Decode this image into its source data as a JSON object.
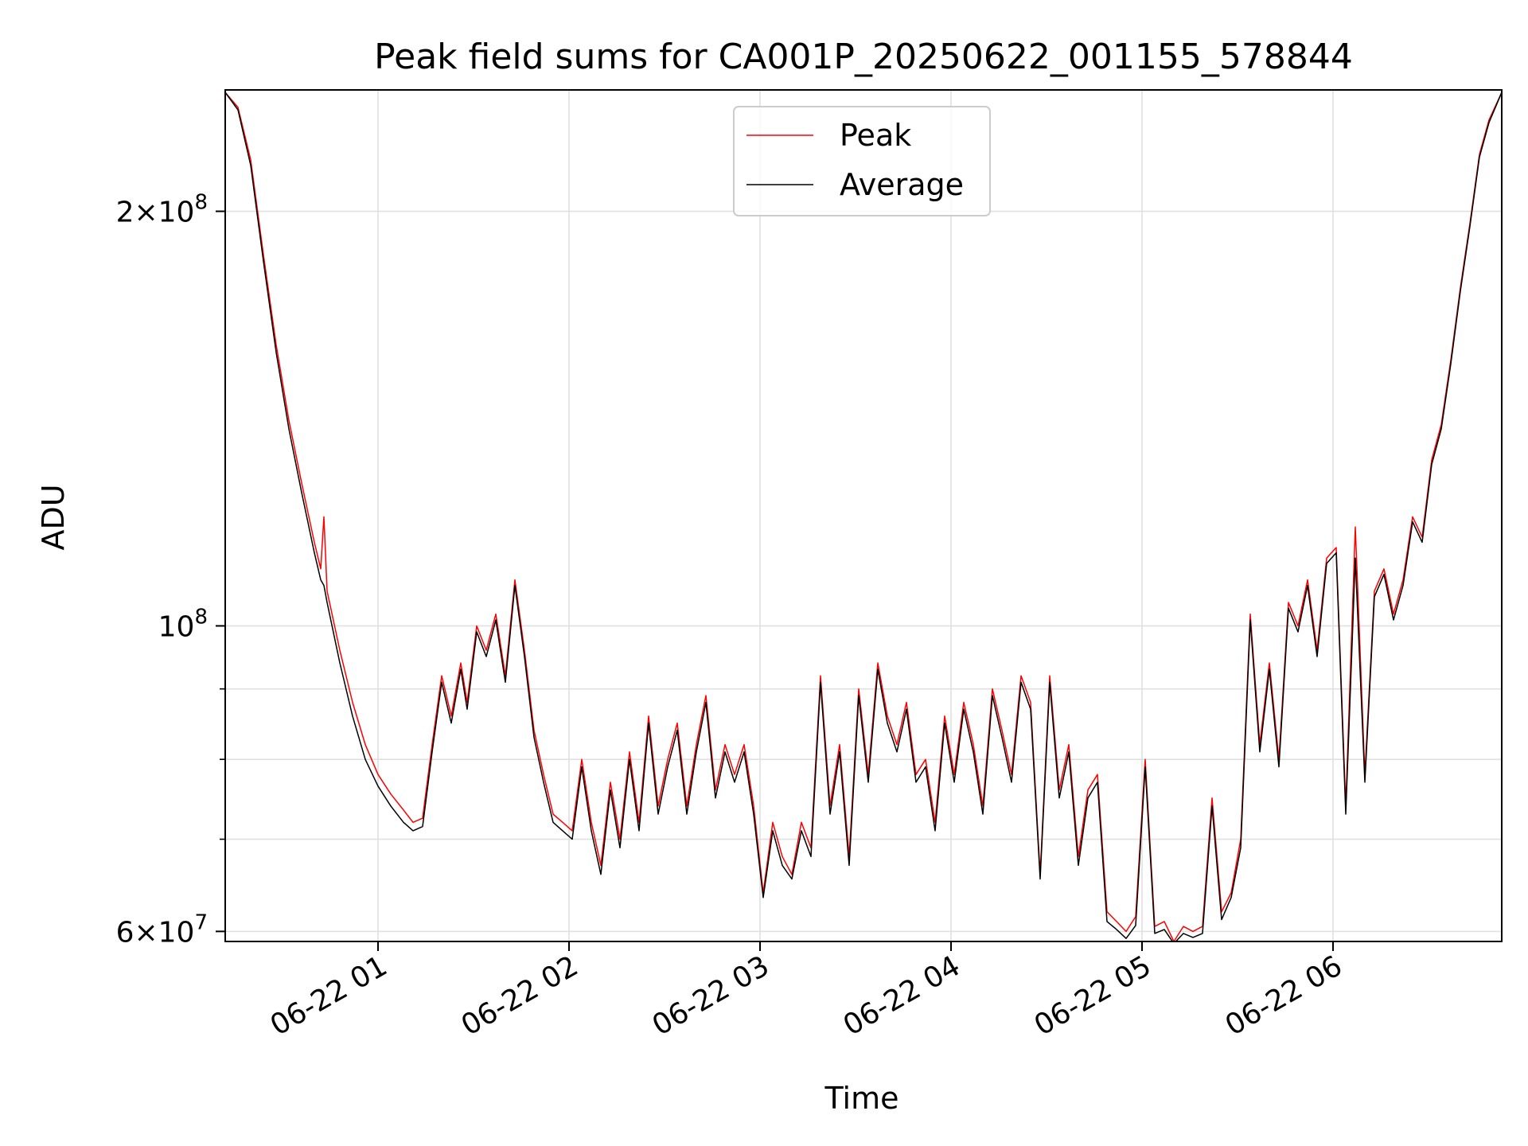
{
  "chart_data": {
    "type": "line",
    "title": "Peak field sums for CA001P_20250622_001155_578844",
    "xlabel": "Time",
    "ylabel": "ADU",
    "yscale": "log",
    "ylim": [
      59000000,
      245000000
    ],
    "xlim": [
      "2025-06-22 00:12",
      "2025-06-22 06:53"
    ],
    "grid": true,
    "legend_placement": "upper center",
    "x_ticks": [
      {
        "value": "2025-06-22 01:00",
        "label": "06-22 01"
      },
      {
        "value": "2025-06-22 02:00",
        "label": "06-22 02"
      },
      {
        "value": "2025-06-22 03:00",
        "label": "06-22 03"
      },
      {
        "value": "2025-06-22 04:00",
        "label": "06-22 04"
      },
      {
        "value": "2025-06-22 05:00",
        "label": "06-22 05"
      },
      {
        "value": "2025-06-22 06:00",
        "label": "06-22 06"
      }
    ],
    "y_ticks_major": [
      {
        "value": 200000000,
        "mantissa": "2",
        "times": "×",
        "base": "10",
        "exp": "8"
      },
      {
        "value": 100000000,
        "mantissa": "",
        "times": "",
        "base": "10",
        "exp": "8"
      },
      {
        "value": 60000000,
        "mantissa": "6",
        "times": "×",
        "base": "10",
        "exp": "7"
      }
    ],
    "y_ticks_minor": [
      70000000,
      80000000,
      90000000
    ],
    "series": [
      {
        "name": "Peak",
        "color": "#ff0000",
        "x": [
          "2025-06-22 00:12",
          "2025-06-22 00:16",
          "2025-06-22 00:20",
          "2025-06-22 00:24",
          "2025-06-22 00:28",
          "2025-06-22 00:32",
          "2025-06-22 00:36",
          "2025-06-22 00:40",
          "2025-06-22 00:42",
          "2025-06-22 00:43",
          "2025-06-22 00:44",
          "2025-06-22 00:48",
          "2025-06-22 00:52",
          "2025-06-22 00:56",
          "2025-06-22 01:00",
          "2025-06-22 01:04",
          "2025-06-22 01:08",
          "2025-06-22 01:11",
          "2025-06-22 01:14",
          "2025-06-22 01:17",
          "2025-06-22 01:20",
          "2025-06-22 01:23",
          "2025-06-22 01:26",
          "2025-06-22 01:28",
          "2025-06-22 01:31",
          "2025-06-22 01:34",
          "2025-06-22 01:37",
          "2025-06-22 01:40",
          "2025-06-22 01:43",
          "2025-06-22 01:46",
          "2025-06-22 01:49",
          "2025-06-22 01:52",
          "2025-06-22 01:55",
          "2025-06-22 01:58",
          "2025-06-22 02:01",
          "2025-06-22 02:04",
          "2025-06-22 02:07",
          "2025-06-22 02:10",
          "2025-06-22 02:13",
          "2025-06-22 02:16",
          "2025-06-22 02:19",
          "2025-06-22 02:22",
          "2025-06-22 02:25",
          "2025-06-22 02:28",
          "2025-06-22 02:31",
          "2025-06-22 02:34",
          "2025-06-22 02:37",
          "2025-06-22 02:40",
          "2025-06-22 02:43",
          "2025-06-22 02:46",
          "2025-06-22 02:49",
          "2025-06-22 02:52",
          "2025-06-22 02:55",
          "2025-06-22 02:58",
          "2025-06-22 03:01",
          "2025-06-22 03:04",
          "2025-06-22 03:07",
          "2025-06-22 03:10",
          "2025-06-22 03:13",
          "2025-06-22 03:16",
          "2025-06-22 03:19",
          "2025-06-22 03:22",
          "2025-06-22 03:25",
          "2025-06-22 03:28",
          "2025-06-22 03:31",
          "2025-06-22 03:34",
          "2025-06-22 03:37",
          "2025-06-22 03:40",
          "2025-06-22 03:43",
          "2025-06-22 03:46",
          "2025-06-22 03:49",
          "2025-06-22 03:52",
          "2025-06-22 03:55",
          "2025-06-22 03:58",
          "2025-06-22 04:01",
          "2025-06-22 04:04",
          "2025-06-22 04:07",
          "2025-06-22 04:10",
          "2025-06-22 04:13",
          "2025-06-22 04:16",
          "2025-06-22 04:19",
          "2025-06-22 04:22",
          "2025-06-22 04:25",
          "2025-06-22 04:28",
          "2025-06-22 04:31",
          "2025-06-22 04:34",
          "2025-06-22 04:37",
          "2025-06-22 04:40",
          "2025-06-22 04:43",
          "2025-06-22 04:46",
          "2025-06-22 04:49",
          "2025-06-22 04:52",
          "2025-06-22 04:55",
          "2025-06-22 04:58",
          "2025-06-22 05:01",
          "2025-06-22 05:04",
          "2025-06-22 05:07",
          "2025-06-22 05:10",
          "2025-06-22 05:13",
          "2025-06-22 05:16",
          "2025-06-22 05:19",
          "2025-06-22 05:22",
          "2025-06-22 05:25",
          "2025-06-22 05:28",
          "2025-06-22 05:31",
          "2025-06-22 05:34",
          "2025-06-22 05:37",
          "2025-06-22 05:40",
          "2025-06-22 05:43",
          "2025-06-22 05:46",
          "2025-06-22 05:49",
          "2025-06-22 05:52",
          "2025-06-22 05:55",
          "2025-06-22 05:58",
          "2025-06-22 06:01",
          "2025-06-22 06:04",
          "2025-06-22 06:07",
          "2025-06-22 06:10",
          "2025-06-22 06:13",
          "2025-06-22 06:16",
          "2025-06-22 06:19",
          "2025-06-22 06:22",
          "2025-06-22 06:25",
          "2025-06-22 06:28",
          "2025-06-22 06:31",
          "2025-06-22 06:34",
          "2025-06-22 06:37",
          "2025-06-22 06:40",
          "2025-06-22 06:43",
          "2025-06-22 06:46",
          "2025-06-22 06:49",
          "2025-06-22 06:53"
        ],
        "values": [
          244000000,
          238000000,
          218000000,
          186000000,
          160000000,
          141000000,
          127000000,
          115000000,
          110000000,
          120000000,
          106000000,
          96000000,
          88000000,
          82000000,
          78000000,
          75500000,
          73500000,
          72000000,
          72500000,
          82000000,
          92000000,
          86000000,
          94000000,
          88000000,
          100000000,
          96000000,
          102000000,
          92000000,
          108000000,
          96000000,
          84000000,
          78000000,
          73000000,
          72000000,
          71000000,
          80000000,
          72000000,
          67000000,
          77000000,
          70000000,
          81000000,
          72000000,
          86000000,
          74000000,
          80000000,
          85000000,
          74000000,
          82000000,
          89000000,
          76000000,
          82000000,
          78000000,
          82000000,
          74000000,
          64000000,
          72000000,
          68000000,
          66000000,
          72000000,
          69000000,
          92000000,
          74000000,
          82000000,
          68000000,
          90000000,
          78000000,
          94000000,
          86000000,
          82000000,
          88000000,
          78000000,
          80000000,
          72000000,
          86000000,
          78000000,
          88000000,
          82000000,
          74000000,
          90000000,
          84000000,
          78000000,
          92000000,
          88000000,
          66000000,
          92000000,
          76000000,
          82000000,
          68000000,
          76000000,
          78000000,
          62000000,
          61000000,
          60000000,
          61500000,
          80000000,
          60500000,
          61000000,
          59000000,
          60500000,
          60000000,
          60500000,
          75000000,
          62000000,
          64000000,
          70000000,
          102000000,
          82000000,
          94000000,
          80000000,
          104000000,
          100000000,
          108000000,
          96000000,
          112000000,
          114000000,
          74000000,
          118000000,
          78000000,
          106000000,
          110000000,
          102000000,
          108000000,
          120000000,
          116000000,
          132000000,
          140000000,
          156000000,
          176000000,
          196000000,
          220000000,
          233000000,
          244000000
        ],
        "width": 1.5
      },
      {
        "name": "Average",
        "color": "#000000",
        "x": [
          "2025-06-22 00:12",
          "2025-06-22 00:16",
          "2025-06-22 00:20",
          "2025-06-22 00:24",
          "2025-06-22 00:28",
          "2025-06-22 00:32",
          "2025-06-22 00:36",
          "2025-06-22 00:40",
          "2025-06-22 00:42",
          "2025-06-22 00:43",
          "2025-06-22 00:44",
          "2025-06-22 00:48",
          "2025-06-22 00:52",
          "2025-06-22 00:56",
          "2025-06-22 01:00",
          "2025-06-22 01:04",
          "2025-06-22 01:08",
          "2025-06-22 01:11",
          "2025-06-22 01:14",
          "2025-06-22 01:17",
          "2025-06-22 01:20",
          "2025-06-22 01:23",
          "2025-06-22 01:26",
          "2025-06-22 01:28",
          "2025-06-22 01:31",
          "2025-06-22 01:34",
          "2025-06-22 01:37",
          "2025-06-22 01:40",
          "2025-06-22 01:43",
          "2025-06-22 01:46",
          "2025-06-22 01:49",
          "2025-06-22 01:52",
          "2025-06-22 01:55",
          "2025-06-22 01:58",
          "2025-06-22 02:01",
          "2025-06-22 02:04",
          "2025-06-22 02:07",
          "2025-06-22 02:10",
          "2025-06-22 02:13",
          "2025-06-22 02:16",
          "2025-06-22 02:19",
          "2025-06-22 02:22",
          "2025-06-22 02:25",
          "2025-06-22 02:28",
          "2025-06-22 02:31",
          "2025-06-22 02:34",
          "2025-06-22 02:37",
          "2025-06-22 02:40",
          "2025-06-22 02:43",
          "2025-06-22 02:46",
          "2025-06-22 02:49",
          "2025-06-22 02:52",
          "2025-06-22 02:55",
          "2025-06-22 02:58",
          "2025-06-22 03:01",
          "2025-06-22 03:04",
          "2025-06-22 03:07",
          "2025-06-22 03:10",
          "2025-06-22 03:13",
          "2025-06-22 03:16",
          "2025-06-22 03:19",
          "2025-06-22 03:22",
          "2025-06-22 03:25",
          "2025-06-22 03:28",
          "2025-06-22 03:31",
          "2025-06-22 03:34",
          "2025-06-22 03:37",
          "2025-06-22 03:40",
          "2025-06-22 03:43",
          "2025-06-22 03:46",
          "2025-06-22 03:49",
          "2025-06-22 03:52",
          "2025-06-22 03:55",
          "2025-06-22 03:58",
          "2025-06-22 04:01",
          "2025-06-22 04:04",
          "2025-06-22 04:07",
          "2025-06-22 04:10",
          "2025-06-22 04:13",
          "2025-06-22 04:16",
          "2025-06-22 04:19",
          "2025-06-22 04:22",
          "2025-06-22 04:25",
          "2025-06-22 04:28",
          "2025-06-22 04:31",
          "2025-06-22 04:34",
          "2025-06-22 04:37",
          "2025-06-22 04:40",
          "2025-06-22 04:43",
          "2025-06-22 04:46",
          "2025-06-22 04:49",
          "2025-06-22 04:52",
          "2025-06-22 04:55",
          "2025-06-22 04:58",
          "2025-06-22 05:01",
          "2025-06-22 05:04",
          "2025-06-22 05:07",
          "2025-06-22 05:10",
          "2025-06-22 05:13",
          "2025-06-22 05:16",
          "2025-06-22 05:19",
          "2025-06-22 05:22",
          "2025-06-22 05:25",
          "2025-06-22 05:28",
          "2025-06-22 05:31",
          "2025-06-22 05:34",
          "2025-06-22 05:37",
          "2025-06-22 05:40",
          "2025-06-22 05:43",
          "2025-06-22 05:46",
          "2025-06-22 05:49",
          "2025-06-22 05:52",
          "2025-06-22 05:55",
          "2025-06-22 05:58",
          "2025-06-22 06:01",
          "2025-06-22 06:04",
          "2025-06-22 06:07",
          "2025-06-22 06:10",
          "2025-06-22 06:13",
          "2025-06-22 06:16",
          "2025-06-22 06:19",
          "2025-06-22 06:22",
          "2025-06-22 06:25",
          "2025-06-22 06:28",
          "2025-06-22 06:31",
          "2025-06-22 06:34",
          "2025-06-22 06:37",
          "2025-06-22 06:40",
          "2025-06-22 06:43",
          "2025-06-22 06:46",
          "2025-06-22 06:49",
          "2025-06-22 06:53"
        ],
        "values": [
          244000000,
          237000000,
          216000000,
          184000000,
          158000000,
          139000000,
          125000000,
          113000000,
          108000000,
          107000000,
          104000000,
          94000000,
          86000000,
          80000000,
          76500000,
          74000000,
          72000000,
          71000000,
          71500000,
          81000000,
          91000000,
          85000000,
          93000000,
          87000000,
          99000000,
          95000000,
          101000000,
          91000000,
          107000000,
          95000000,
          83000000,
          77000000,
          72000000,
          71000000,
          70000000,
          79000000,
          71000000,
          66000000,
          76000000,
          69000000,
          80000000,
          71000000,
          85000000,
          73000000,
          79000000,
          84000000,
          73000000,
          81000000,
          88000000,
          75000000,
          81000000,
          77000000,
          81000000,
          73000000,
          63500000,
          71000000,
          67000000,
          65500000,
          71000000,
          68000000,
          91000000,
          73000000,
          81000000,
          67000000,
          89000000,
          77000000,
          93000000,
          85000000,
          81000000,
          87000000,
          77000000,
          79000000,
          71000000,
          85000000,
          77000000,
          87000000,
          81000000,
          73000000,
          89000000,
          83000000,
          77000000,
          91000000,
          87000000,
          65500000,
          91000000,
          75000000,
          81000000,
          67000000,
          75000000,
          77000000,
          61000000,
          60200000,
          59300000,
          60600000,
          79000000,
          59800000,
          60200000,
          58800000,
          59800000,
          59400000,
          59800000,
          74000000,
          61200000,
          63500000,
          69000000,
          101000000,
          81000000,
          93000000,
          79000000,
          103000000,
          99000000,
          107000000,
          95000000,
          111000000,
          113000000,
          73000000,
          112000000,
          77000000,
          105000000,
          109000000,
          101000000,
          107000000,
          119000000,
          115000000,
          131000000,
          139000000,
          155000000,
          175000000,
          195000000,
          219000000,
          232000000,
          244000000
        ],
        "width": 1.5
      }
    ]
  }
}
